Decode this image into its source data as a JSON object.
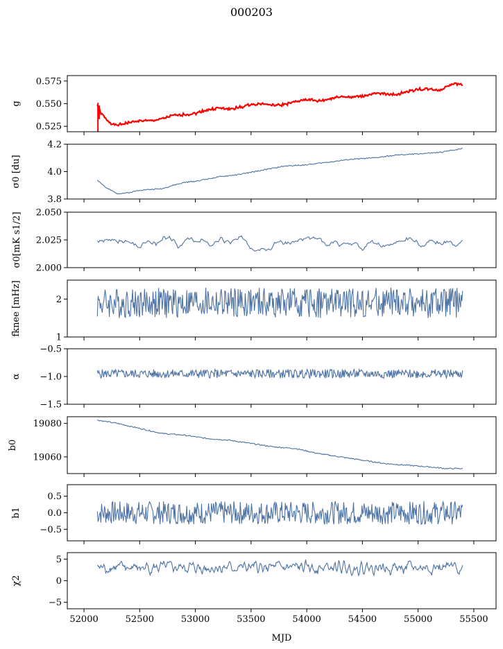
{
  "figure": {
    "title": "000203",
    "xlabel": "MJD"
  },
  "colors": {
    "series": "#4c72a4",
    "fit": "#ff0000",
    "frame": "#000000"
  },
  "x_axis": {
    "range": [
      51850,
      55700
    ],
    "ticks": [
      52000,
      52500,
      53000,
      53500,
      54000,
      54500,
      55000,
      55500
    ],
    "tick_labels": [
      "52000",
      "52500",
      "53000",
      "53500",
      "54000",
      "54500",
      "55000",
      "55500"
    ]
  },
  "chart_data": [
    {
      "type": "line",
      "ylabel": "g",
      "ylabel_plain": "g",
      "ylim": [
        0.519,
        0.581
      ],
      "yticks": [
        0.525,
        0.55,
        0.575
      ],
      "ytick_labels": [
        "0.525",
        "0.550",
        "0.575"
      ],
      "series": [
        {
          "kind": "smooth",
          "x": [
            52120,
            52150,
            52200,
            52250,
            52300,
            52400,
            52500,
            52600,
            52700,
            52800,
            52900,
            53000,
            53100,
            53200,
            53300,
            53400,
            53500,
            53600,
            53700,
            53800,
            53900,
            54000,
            54100,
            54200,
            54300,
            54400,
            54500,
            54600,
            54700,
            54800,
            54900,
            55000,
            55100,
            55200,
            55300,
            55400
          ],
          "values": [
            0.549,
            0.54,
            0.532,
            0.528,
            0.526,
            0.529,
            0.531,
            0.531,
            0.533,
            0.537,
            0.538,
            0.539,
            0.543,
            0.545,
            0.544,
            0.546,
            0.549,
            0.55,
            0.548,
            0.549,
            0.552,
            0.555,
            0.553,
            0.555,
            0.558,
            0.557,
            0.558,
            0.561,
            0.561,
            0.56,
            0.563,
            0.566,
            0.566,
            0.565,
            0.572,
            0.571
          ],
          "noise": 0.0012,
          "seed": 1
        }
      ],
      "overlay": {
        "name": "fit",
        "spike_x": 52125,
        "spike_min": 0.519
      }
    },
    {
      "type": "line",
      "ylabel": "σ0 [du]",
      "ylabel_plain": "sigma0",
      "ylim": [
        3.8,
        4.2
      ],
      "yticks": [
        3.8,
        4.0,
        4.2
      ],
      "ytick_labels": [
        "3.8",
        "4.0",
        "4.2"
      ],
      "series": [
        {
          "kind": "smooth",
          "x": [
            52120,
            52200,
            52300,
            52400,
            52500,
            52600,
            52700,
            52800,
            52900,
            53000,
            53200,
            53400,
            53600,
            53800,
            54000,
            54200,
            54400,
            54600,
            54800,
            55000,
            55200,
            55400
          ],
          "values": [
            3.94,
            3.88,
            3.84,
            3.845,
            3.865,
            3.87,
            3.875,
            3.9,
            3.92,
            3.93,
            3.96,
            3.98,
            4.01,
            4.04,
            4.05,
            4.07,
            4.09,
            4.1,
            4.12,
            4.13,
            4.14,
            4.17
          ],
          "noise": 0.004,
          "seed": 2
        }
      ]
    },
    {
      "type": "line",
      "ylabel": "σ0[mK s1/2]",
      "ylabel_plain": "sigma0 mK",
      "ylim": [
        2.0,
        2.05
      ],
      "yticks": [
        2.0,
        2.025,
        2.05
      ],
      "ytick_labels": [
        "2.000",
        "2.025",
        "2.050"
      ],
      "series": [
        {
          "kind": "noise",
          "x0": 52120,
          "x1": 55400,
          "n": 300,
          "mean": 2.023,
          "amp": 0.004,
          "smooth": 4,
          "seed": 3
        }
      ]
    },
    {
      "type": "line",
      "ylabel": "fknee [mHz]",
      "ylabel_plain": "fknee",
      "ylim": [
        1,
        2.5
      ],
      "yticks": [
        1,
        2
      ],
      "ytick_labels": [
        "1",
        "2"
      ],
      "series": [
        {
          "kind": "noise",
          "x0": 52120,
          "x1": 55400,
          "n": 520,
          "mean": 1.9,
          "amp": 0.25,
          "smooth": 1,
          "seed": 4
        }
      ]
    },
    {
      "type": "line",
      "ylabel": "α",
      "ylabel_plain": "alpha",
      "ylim": [
        -1.5,
        -0.5
      ],
      "yticks": [
        -1.5,
        -1.0,
        -0.5
      ],
      "ytick_labels": [
        "−1.5",
        "−1.0",
        "−0.5"
      ],
      "series": [
        {
          "kind": "noise",
          "x0": 52120,
          "x1": 55400,
          "n": 520,
          "mean": -0.95,
          "amp": 0.05,
          "smooth": 1,
          "seed": 5
        }
      ]
    },
    {
      "type": "line",
      "ylabel": "b0",
      "ylabel_plain": "b0",
      "ylim": [
        19050,
        19084
      ],
      "yticks": [
        19060,
        19080
      ],
      "ytick_labels": [
        "19060",
        "19080"
      ],
      "series": [
        {
          "kind": "smooth",
          "x": [
            52120,
            52300,
            52500,
            52700,
            52900,
            53100,
            53300,
            53500,
            53700,
            53900,
            54100,
            54300,
            54500,
            54700,
            54900,
            55100,
            55250,
            55400
          ],
          "values": [
            19082,
            19080,
            19077,
            19074,
            19073,
            19071,
            19070,
            19068,
            19066,
            19065,
            19062,
            19060,
            19058,
            19056,
            19055,
            19054,
            19053,
            19053
          ],
          "noise": 0.35,
          "seed": 6
        }
      ]
    },
    {
      "type": "line",
      "ylabel": "b1",
      "ylabel_plain": "b1",
      "ylim": [
        -0.85,
        0.85
      ],
      "yticks": [
        -0.5,
        0.0,
        0.5
      ],
      "ytick_labels": [
        "−0.5",
        "0.0",
        "0.5"
      ],
      "series": [
        {
          "kind": "noise",
          "x0": 52120,
          "x1": 55400,
          "n": 520,
          "mean": 0.0,
          "amp": 0.22,
          "smooth": 1,
          "seed": 7
        }
      ]
    },
    {
      "type": "line",
      "ylabel": "χ2",
      "ylabel_plain": "chi2",
      "ylim": [
        -6.5,
        6.5
      ],
      "yticks": [
        -5,
        0,
        5
      ],
      "ytick_labels": [
        "−5",
        "0",
        "5"
      ],
      "series": [
        {
          "kind": "noise",
          "x0": 52120,
          "x1": 55400,
          "n": 520,
          "mean": 3.0,
          "amp": 1.0,
          "smooth": 2,
          "seed": 8
        }
      ]
    }
  ]
}
